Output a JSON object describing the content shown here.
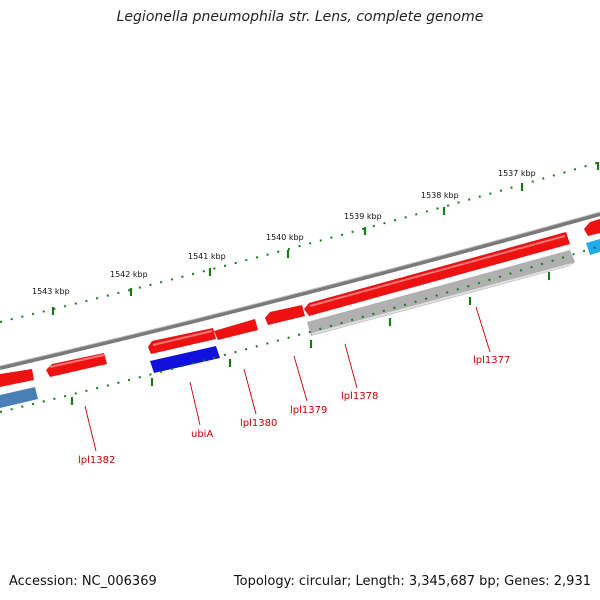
{
  "title": "Legionella pneumophila str. Lens, complete genome",
  "footer": {
    "accession": "Accession: NC_006369",
    "summary": "Topology: circular; Length: 3,345,687 bp; Genes: 2,931"
  },
  "scale_labels": [
    "1537 kbp",
    "1538 kbp",
    "1539 kbp",
    "1540 kbp",
    "1541 kbp",
    "1542 kbp",
    "1543 kbp"
  ],
  "gene_labels": [
    "lpl1377",
    "lpl1378",
    "lpl1379",
    "lpl1380",
    "ubiA",
    "lpl1382"
  ],
  "colors": {
    "backbone": "#7a7a7a",
    "forward_cds": "#ee1111",
    "reverse_highlight": "#1111dd",
    "reverse_gray": "#b0b0b0",
    "reverse_steel": "#4a7fb5",
    "reverse_cyan": "#22aaee",
    "tick": "#1a7a1a",
    "label": "#cc0000"
  }
}
